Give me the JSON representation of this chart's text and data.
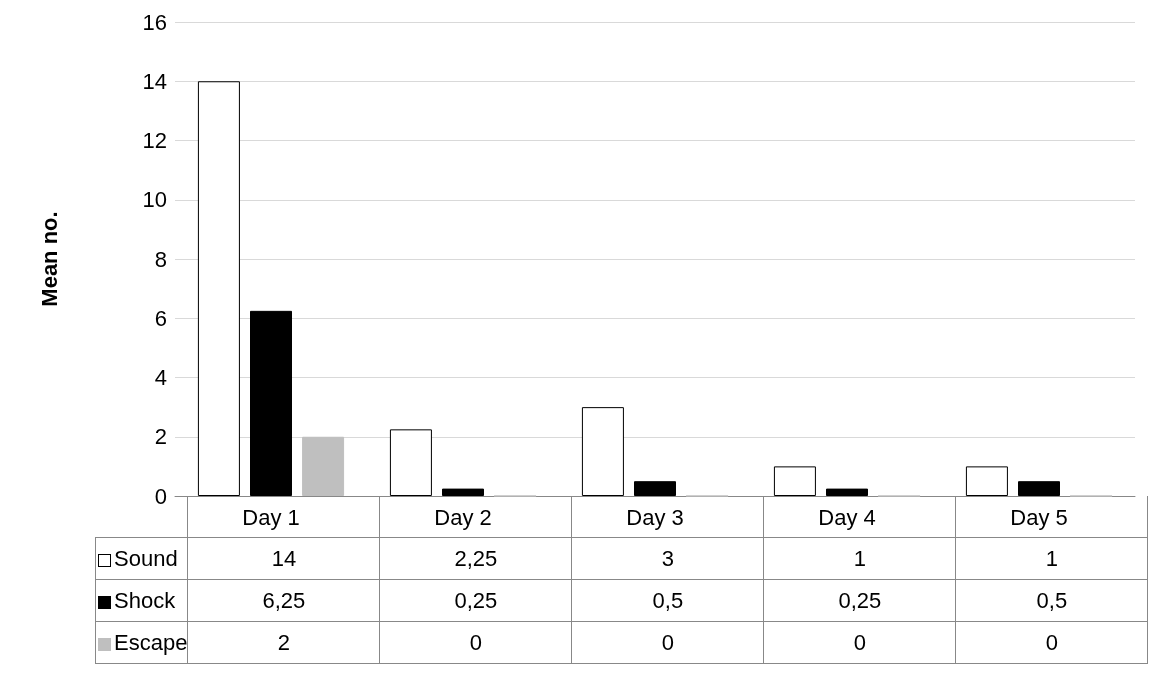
{
  "chart_data": {
    "type": "bar",
    "ylabel": "Mean no.",
    "categories": [
      "Day 1",
      "Day 2",
      "Day 3",
      "Day 4",
      "Day 5"
    ],
    "series": [
      {
        "name": "Sound",
        "color": "#ffffff",
        "values": [
          14,
          2.25,
          3,
          1,
          1
        ],
        "value_labels": [
          "14",
          "2,25",
          "3",
          "1",
          "1"
        ]
      },
      {
        "name": "Shock",
        "color": "#000000",
        "values": [
          6.25,
          0.25,
          0.5,
          0.25,
          0.5
        ],
        "value_labels": [
          "6,25",
          "0,25",
          "0,5",
          "0,25",
          "0,5"
        ]
      },
      {
        "name": "Escape",
        "color": "#bfbfbf",
        "values": [
          2,
          0,
          0,
          0,
          0
        ],
        "value_labels": [
          "2",
          "0",
          "0",
          "0",
          "0"
        ]
      }
    ],
    "ylim": [
      0,
      16
    ],
    "yticks": [
      0,
      2,
      4,
      6,
      8,
      10,
      12,
      14,
      16
    ],
    "grid": "y",
    "legend": "bottom"
  }
}
